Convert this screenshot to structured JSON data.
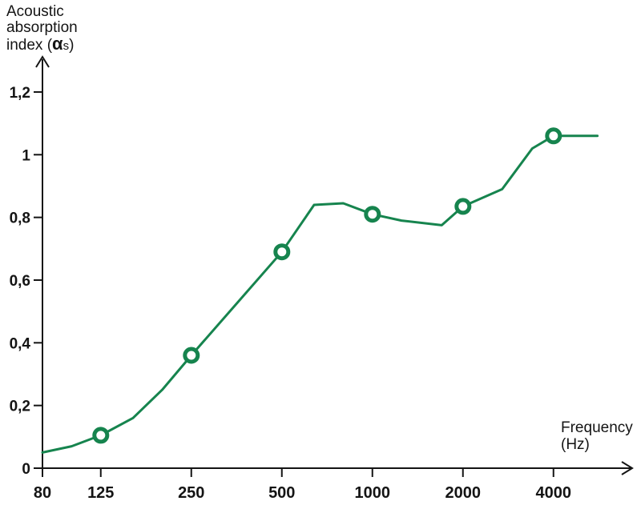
{
  "header": {
    "line1": "Acoustic",
    "line2": "absorption",
    "line3_pre": "index (",
    "alpha": "α",
    "alpha_sub": "s",
    "line3_close": ")"
  },
  "freq_label": {
    "line1": "Frequency",
    "line2": "(Hz)"
  },
  "colors": {
    "line_green": "#16844E",
    "marker_fill": "#ffffff",
    "ink": "#141414"
  },
  "chart_data": {
    "type": "line",
    "title": "Acoustic absorption index (αs)",
    "ylabel": "Acoustic absorption index (αs)",
    "xlabel": "Frequency (Hz)",
    "x_scale": "log2",
    "grid": false,
    "legend": false,
    "xlim": [
      80,
      6000
    ],
    "ylim": [
      0,
      1.3
    ],
    "x_ticks": [
      80,
      125,
      250,
      500,
      1000,
      2000,
      4000
    ],
    "x_tick_labels": [
      "80",
      "125",
      "250",
      "500",
      "1000",
      "2000",
      "4000"
    ],
    "y_ticks": [
      0,
      0.2,
      0.4,
      0.6,
      0.8,
      1,
      1.2
    ],
    "y_tick_labels": [
      "0",
      "0,2",
      "0,4",
      "0,6",
      "0,8",
      "1",
      "1,2"
    ],
    "series": [
      {
        "name": "acoustic-absorption-curve",
        "color": "#16844E",
        "line_points": [
          [
            80,
            0.05
          ],
          [
            100,
            0.07
          ],
          [
            125,
            0.105
          ],
          [
            160,
            0.16
          ],
          [
            200,
            0.25
          ],
          [
            250,
            0.36
          ],
          [
            500,
            0.69
          ],
          [
            640,
            0.84
          ],
          [
            800,
            0.845
          ],
          [
            1000,
            0.81
          ],
          [
            1250,
            0.79
          ],
          [
            1700,
            0.775
          ],
          [
            2000,
            0.835
          ],
          [
            2700,
            0.89
          ],
          [
            3400,
            1.02
          ],
          [
            4000,
            1.06
          ],
          [
            5600,
            1.06
          ]
        ],
        "marker_points": [
          [
            125,
            0.105
          ],
          [
            250,
            0.36
          ],
          [
            500,
            0.69
          ],
          [
            1000,
            0.81
          ],
          [
            2000,
            0.835
          ],
          [
            4000,
            1.06
          ]
        ]
      }
    ]
  }
}
